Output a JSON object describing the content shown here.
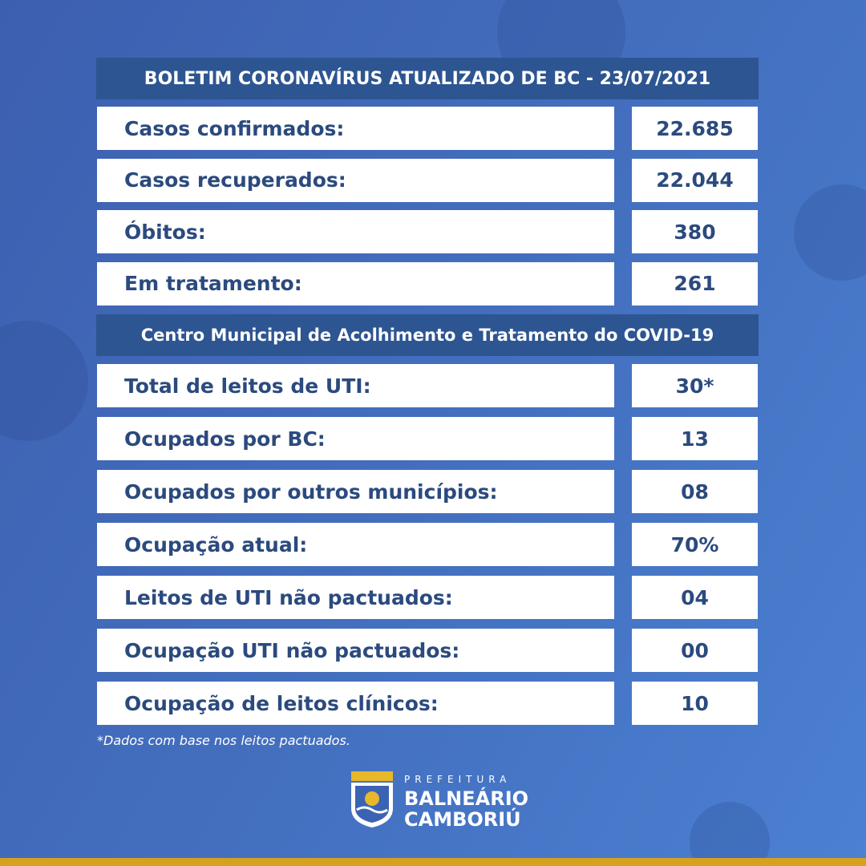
{
  "header": {
    "title": "BOLETIM CORONAVÍRUS ATUALIZADO DE BC - 23/07/2021"
  },
  "section1": {
    "rows": [
      [
        "Casos confirmados:",
        "22.685"
      ],
      [
        "Casos recuperados:",
        "22.044"
      ],
      [
        "Óbitos:",
        "380"
      ],
      [
        "Em tratamento:",
        "261"
      ]
    ]
  },
  "section2": {
    "title": "Centro Municipal de Acolhimento e Tratamento do COVID-19",
    "rows": [
      [
        "Total de leitos de UTI:",
        "30*"
      ],
      [
        "Ocupados por BC:",
        "13"
      ],
      [
        "Ocupados por outros municípios:",
        "08"
      ],
      [
        "Ocupação atual:",
        "70%"
      ],
      [
        "Leitos de UTI não pactuados:",
        "04"
      ],
      [
        "Ocupação UTI não pactuados:",
        "00"
      ],
      [
        "Ocupação de leitos clínicos:",
        "10"
      ]
    ]
  },
  "footnote": "*Dados com base nos leitos pactuados.",
  "logo": {
    "line1": "PREFEITURA",
    "line2": "BALNEÁRIO",
    "line3": "CAMBORIÚ"
  }
}
